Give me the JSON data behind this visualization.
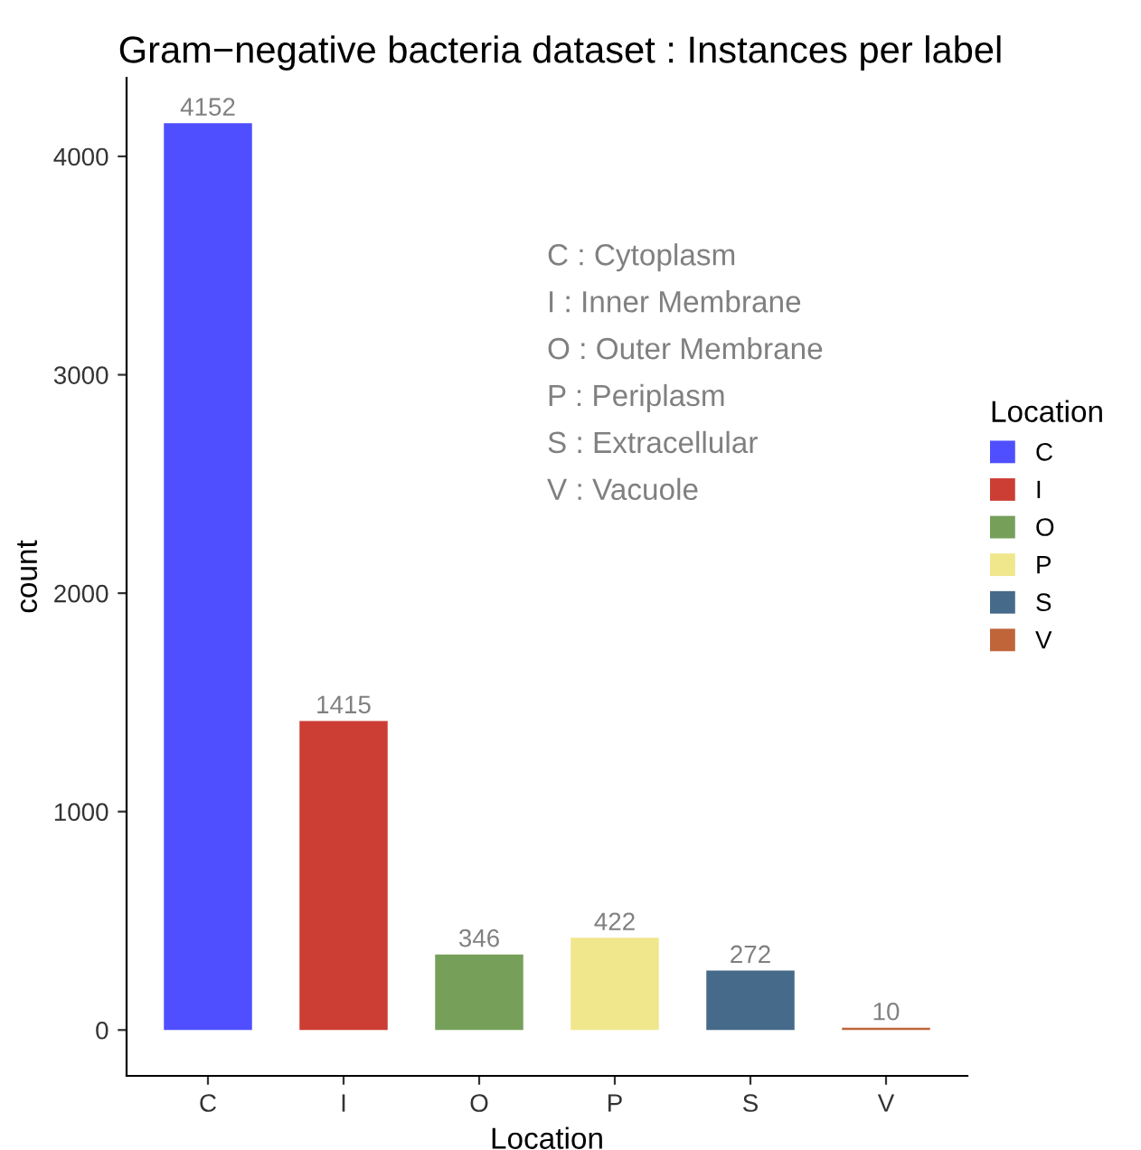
{
  "chart_data": {
    "type": "bar",
    "title": "Gram−negative bacteria dataset : Instances per label",
    "xlabel": "Location",
    "ylabel": "count",
    "legend_title": "Location",
    "categories": [
      "C",
      "I",
      "O",
      "P",
      "S",
      "V"
    ],
    "series": [
      {
        "name": "C",
        "color": "#4f4fff",
        "values": [
          4152,
          null,
          null,
          null,
          null,
          null
        ]
      },
      {
        "name": "I",
        "color": "#cc3e33",
        "values": [
          null,
          1415,
          null,
          null,
          null,
          null
        ]
      },
      {
        "name": "O",
        "color": "#76a05a",
        "values": [
          null,
          null,
          346,
          null,
          null,
          null
        ]
      },
      {
        "name": "P",
        "color": "#f0e68c",
        "values": [
          null,
          null,
          null,
          422,
          null,
          null
        ]
      },
      {
        "name": "S",
        "color": "#466a8a",
        "values": [
          null,
          null,
          null,
          null,
          272,
          null
        ]
      },
      {
        "name": "V",
        "color": "#c0643a",
        "values": [
          null,
          null,
          null,
          null,
          null,
          10
        ]
      }
    ],
    "ylim": [
      -210,
      4360
    ],
    "yticks": [
      0,
      1000,
      2000,
      3000,
      4000
    ],
    "grid": false,
    "legend": "right",
    "data_labels": true,
    "annotations": [
      "C : Cytoplasm",
      "I : Inner Membrane",
      "O : Outer Membrane",
      "P : Periplasm",
      "S : Extracellular",
      "V : Vacuole"
    ]
  }
}
